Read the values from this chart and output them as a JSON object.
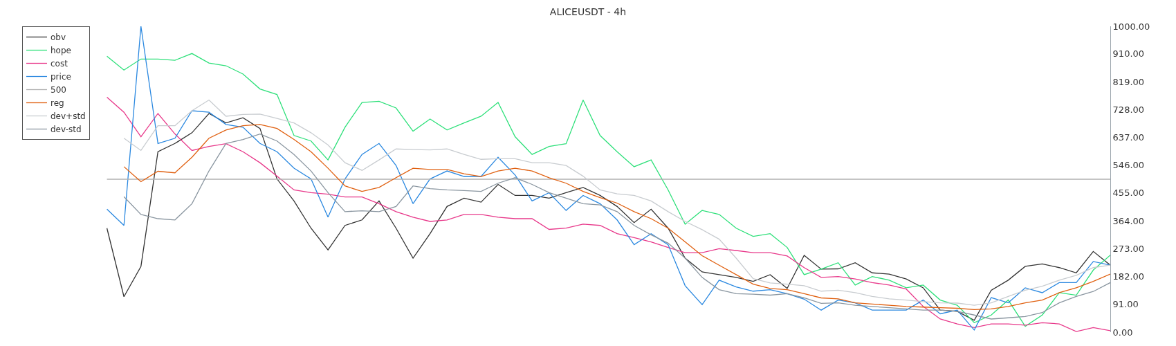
{
  "chart_data": {
    "type": "line",
    "title": "ALICEUSDT - 4h",
    "categories": [
      null,
      null,
      null,
      null,
      null,
      null,
      null,
      null,
      null,
      null,
      null,
      null,
      null,
      null,
      null,
      null,
      null,
      null,
      null,
      null,
      null,
      null,
      null,
      null,
      null,
      null,
      null,
      null,
      null,
      null,
      null,
      null,
      null,
      null,
      null,
      null,
      null,
      null,
      null,
      null,
      null,
      null,
      null,
      null,
      null,
      null,
      null,
      null,
      null,
      null,
      null,
      null,
      null,
      null,
      null,
      null,
      null,
      null,
      null,
      null,
      null
    ],
    "series": [
      {
        "name": "obv",
        "color": "#333333",
        "values": [
          null,
          340,
          116,
          215,
          590,
          617,
          652,
          715,
          684,
          701,
          666,
          501,
          429,
          340,
          269,
          349,
          367,
          429,
          340,
          242,
          322,
          411,
          438,
          425,
          483,
          447,
          447,
          438,
          456,
          473,
          447,
          411,
          358,
          402,
          340,
          242,
          197,
          188,
          179,
          166,
          188,
          143,
          251,
          206,
          207,
          227,
          194,
          190,
          174,
          145,
          72,
          68,
          39,
          137,
          170,
          215,
          223,
          211,
          194,
          264,
          219
        ]
      },
      {
        "name": "hope",
        "color": "#2ee07a",
        "values": [
          null,
          902,
          857,
          893,
          893,
          889,
          911,
          880,
          871,
          844,
          795,
          777,
          643,
          625,
          563,
          670,
          751,
          755,
          733,
          657,
          697,
          661,
          684,
          706,
          751,
          639,
          581,
          607,
          616,
          759,
          643,
          590,
          541,
          563,
          465,
          353,
          398,
          385,
          340,
          313,
          322,
          277,
          188,
          206,
          227,
          154,
          182,
          170,
          145,
          154,
          105,
          88,
          31,
          56,
          105,
          19,
          56,
          129,
          121,
          203,
          252
        ]
      },
      {
        "name": "cost",
        "color": "#e8388a",
        "values": [
          null,
          768,
          719,
          639,
          715,
          648,
          594,
          607,
          616,
          590,
          554,
          510,
          465,
          456,
          451,
          442,
          442,
          420,
          394,
          376,
          362,
          367,
          385,
          385,
          376,
          371,
          371,
          336,
          340,
          353,
          349,
          322,
          309,
          295,
          277,
          260,
          260,
          273,
          267,
          260,
          260,
          249,
          211,
          179,
          182,
          174,
          162,
          154,
          141,
          84,
          43,
          27,
          15,
          27,
          27,
          23,
          31,
          27,
          2,
          15,
          5
        ]
      },
      {
        "name": "price",
        "color": "#2a88e0",
        "values": [
          null,
          402,
          349,
          1000,
          617,
          634,
          724,
          719,
          679,
          670,
          617,
          590,
          536,
          501,
          376,
          501,
          581,
          617,
          545,
          420,
          501,
          527,
          509,
          509,
          572,
          514,
          429,
          456,
          398,
          447,
          420,
          367,
          286,
          322,
          286,
          152,
          90,
          170,
          148,
          134,
          139,
          126,
          108,
          72,
          105,
          96,
          72,
          72,
          72,
          105,
          60,
          72,
          7,
          113,
          96,
          145,
          129,
          162,
          162,
          231,
          219
        ]
      },
      {
        "name": "500",
        "color": "#b0b0b0",
        "values": [
          null,
          500,
          500,
          500,
          500,
          500,
          500,
          500,
          500,
          500,
          500,
          500,
          500,
          500,
          500,
          500,
          500,
          500,
          500,
          500,
          500,
          500,
          500,
          500,
          500,
          500,
          500,
          500,
          500,
          500,
          500,
          500,
          500,
          500,
          500,
          500,
          500,
          500,
          500,
          500,
          500,
          500,
          500,
          500,
          500,
          500,
          500,
          500,
          500,
          500,
          500,
          500,
          500,
          500,
          500,
          500,
          500,
          500,
          500,
          500,
          500
        ]
      },
      {
        "name": "reg",
        "color": "#e06010",
        "values": [
          null,
          null,
          541,
          492,
          526,
          521,
          572,
          634,
          661,
          675,
          679,
          666,
          630,
          590,
          536,
          478,
          460,
          473,
          505,
          536,
          532,
          532,
          518,
          509,
          527,
          536,
          527,
          505,
          487,
          460,
          440,
          422,
          394,
          371,
          340,
          295,
          250,
          219,
          188,
          157,
          143,
          139,
          126,
          112,
          109,
          96,
          92,
          88,
          84,
          82,
          80,
          78,
          74,
          76,
          84,
          96,
          105,
          129,
          145,
          166,
          190
        ]
      },
      {
        "name": "dev+std",
        "color": "#c8ccd0",
        "values": [
          null,
          null,
          634,
          594,
          675,
          675,
          724,
          759,
          706,
          712,
          713,
          699,
          684,
          652,
          612,
          554,
          529,
          563,
          599,
          597,
          596,
          599,
          581,
          565,
          567,
          567,
          554,
          554,
          545,
          510,
          465,
          452,
          447,
          429,
          394,
          362,
          335,
          304,
          242,
          175,
          161,
          157,
          152,
          134,
          137,
          129,
          117,
          109,
          105,
          100,
          96,
          95,
          88,
          96,
          117,
          137,
          150,
          170,
          186,
          211,
          219
        ]
      },
      {
        "name": "dev-std",
        "color": "#8a96a0",
        "values": [
          null,
          null,
          443,
          385,
          371,
          367,
          420,
          527,
          617,
          630,
          648,
          625,
          581,
          527,
          456,
          394,
          397,
          394,
          411,
          478,
          469,
          465,
          463,
          460,
          487,
          505,
          483,
          456,
          438,
          420,
          416,
          394,
          349,
          318,
          291,
          242,
          179,
          139,
          126,
          124,
          121,
          126,
          112,
          94,
          96,
          88,
          84,
          80,
          76,
          72,
          72,
          68,
          56,
          43,
          47,
          51,
          64,
          96,
          117,
          133,
          162
        ]
      }
    ],
    "ylim": [
      0,
      1000
    ],
    "yticks": [
      {
        "value": 0,
        "label": "0.00"
      },
      {
        "value": 91,
        "label": "91.00"
      },
      {
        "value": 182,
        "label": "182.00"
      },
      {
        "value": 273,
        "label": "273.00"
      },
      {
        "value": 364,
        "label": "364.00"
      },
      {
        "value": 455,
        "label": "455.00"
      },
      {
        "value": 546,
        "label": "546.00"
      },
      {
        "value": 637,
        "label": "637.00"
      },
      {
        "value": 728,
        "label": "728.00"
      },
      {
        "value": 819,
        "label": "819.00"
      },
      {
        "value": 910,
        "label": "910.00"
      },
      {
        "value": 1000,
        "label": "1000.00"
      }
    ],
    "tick_labels": "y",
    "grid": false,
    "legend": "top left",
    "marker": "none",
    "line_style": "solid"
  }
}
